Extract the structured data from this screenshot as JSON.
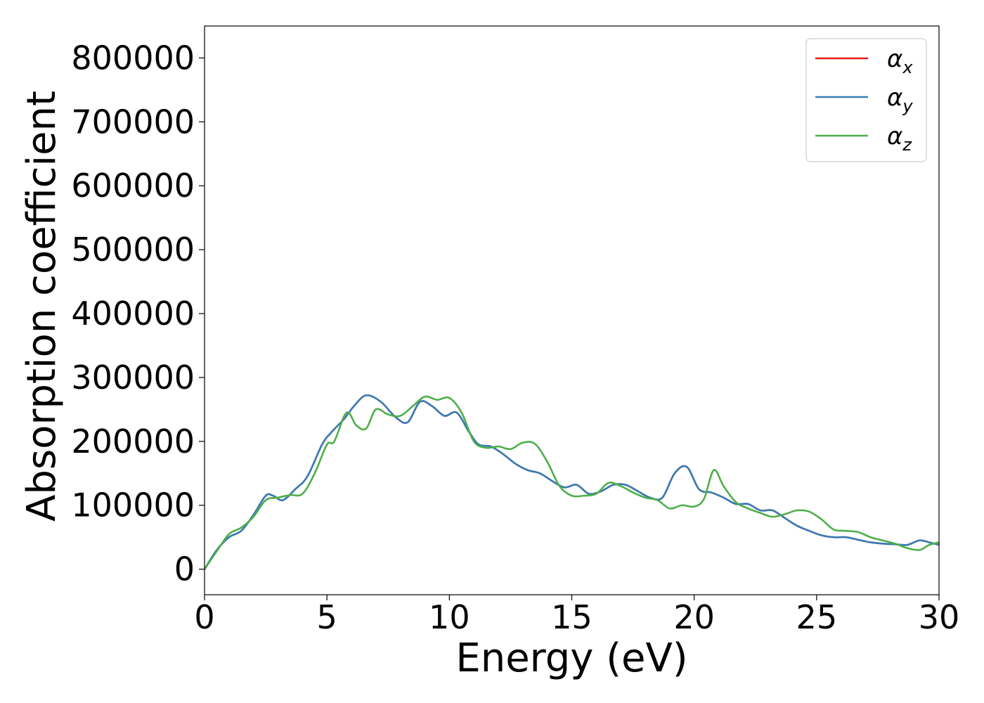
{
  "chart_data": {
    "type": "line",
    "title": "",
    "xlabel": "Energy (eV)",
    "ylabel": "Absorption coefficient",
    "xlim": [
      0,
      30
    ],
    "ylim": [
      -40000,
      850000
    ],
    "xticks": [
      0,
      5,
      10,
      15,
      20,
      25,
      30
    ],
    "yticks": [
      0,
      100000,
      200000,
      300000,
      400000,
      500000,
      600000,
      700000,
      800000
    ],
    "grid": false,
    "legend_position": "top-right",
    "series": [
      {
        "name": "α_x",
        "legend_base": "α",
        "legend_sub": "x",
        "color": "#e41a1c",
        "x": [
          0,
          0.5,
          1,
          1.5,
          2,
          2.5,
          2.8,
          3.2,
          3.7,
          4.2,
          4.8,
          5.2,
          5.7,
          6.1,
          6.6,
          7.2,
          7.8,
          8.3,
          8.8,
          9.3,
          9.8,
          10.3,
          10.8,
          11.2,
          11.7,
          12.2,
          12.7,
          13.2,
          13.7,
          14.2,
          14.7,
          15.2,
          15.7,
          16.2,
          16.7,
          17.2,
          17.7,
          18.2,
          18.7,
          19.2,
          19.7,
          20.2,
          20.7,
          21.2,
          21.7,
          22.2,
          22.7,
          23.2,
          23.7,
          24.2,
          24.7,
          25.2,
          25.7,
          26.2,
          26.7,
          27.2,
          27.7,
          28.2,
          28.7,
          29.2,
          29.6,
          30
        ],
        "y": [
          0,
          30000,
          50000,
          60000,
          85000,
          115000,
          115000,
          108000,
          125000,
          145000,
          195000,
          215000,
          235000,
          255000,
          272000,
          262000,
          238000,
          230000,
          262000,
          255000,
          240000,
          245000,
          215000,
          195000,
          192000,
          180000,
          165000,
          155000,
          150000,
          138000,
          128000,
          132000,
          118000,
          122000,
          132000,
          132000,
          122000,
          112000,
          112000,
          150000,
          160000,
          125000,
          120000,
          112000,
          102000,
          102000,
          92000,
          92000,
          80000,
          68000,
          60000,
          53000,
          50000,
          50000,
          46000,
          42000,
          40000,
          39000,
          38000,
          45000,
          42000,
          38000
        ]
      },
      {
        "name": "α_y",
        "legend_base": "α",
        "legend_sub": "y",
        "color": "#377eb8",
        "x": [
          0,
          0.5,
          1,
          1.5,
          2,
          2.5,
          2.8,
          3.2,
          3.7,
          4.2,
          4.8,
          5.2,
          5.7,
          6.1,
          6.6,
          7.2,
          7.8,
          8.3,
          8.8,
          9.3,
          9.8,
          10.3,
          10.8,
          11.2,
          11.7,
          12.2,
          12.7,
          13.2,
          13.7,
          14.2,
          14.7,
          15.2,
          15.7,
          16.2,
          16.7,
          17.2,
          17.7,
          18.2,
          18.7,
          19.2,
          19.7,
          20.2,
          20.7,
          21.2,
          21.7,
          22.2,
          22.7,
          23.2,
          23.7,
          24.2,
          24.7,
          25.2,
          25.7,
          26.2,
          26.7,
          27.2,
          27.7,
          28.2,
          28.7,
          29.2,
          29.6,
          30
        ],
        "y": [
          0,
          30000,
          50000,
          60000,
          85000,
          115000,
          115000,
          108000,
          125000,
          145000,
          195000,
          215000,
          235000,
          255000,
          272000,
          262000,
          238000,
          230000,
          262000,
          255000,
          240000,
          245000,
          215000,
          195000,
          192000,
          180000,
          165000,
          155000,
          150000,
          138000,
          128000,
          132000,
          118000,
          122000,
          132000,
          132000,
          122000,
          112000,
          112000,
          150000,
          160000,
          125000,
          120000,
          112000,
          102000,
          102000,
          92000,
          92000,
          80000,
          68000,
          60000,
          53000,
          50000,
          50000,
          46000,
          42000,
          40000,
          39000,
          38000,
          45000,
          42000,
          38000
        ]
      },
      {
        "name": "α_z",
        "legend_base": "α",
        "legend_sub": "z",
        "color": "#4daf4a",
        "x": [
          0,
          0.5,
          1,
          1.5,
          2,
          2.5,
          3.0,
          3.5,
          4.0,
          4.5,
          5.0,
          5.3,
          5.8,
          6.2,
          6.6,
          7.0,
          7.5,
          8.0,
          8.5,
          9.0,
          9.5,
          10.0,
          10.5,
          11.0,
          11.5,
          12.0,
          12.5,
          13.0,
          13.5,
          14.0,
          14.5,
          15.0,
          15.5,
          16.0,
          16.5,
          17.0,
          17.5,
          18.0,
          18.5,
          19.0,
          19.5,
          20.0,
          20.4,
          20.8,
          21.2,
          21.7,
          22.2,
          22.7,
          23.2,
          23.7,
          24.2,
          24.7,
          25.2,
          25.7,
          26.2,
          26.7,
          27.2,
          27.7,
          28.2,
          28.7,
          29.2,
          29.6,
          30
        ],
        "y": [
          0,
          28000,
          55000,
          65000,
          82000,
          108000,
          112000,
          116000,
          118000,
          150000,
          195000,
          200000,
          245000,
          225000,
          220000,
          250000,
          242000,
          240000,
          255000,
          270000,
          265000,
          268000,
          245000,
          200000,
          190000,
          192000,
          188000,
          198000,
          196000,
          168000,
          130000,
          115000,
          115000,
          118000,
          135000,
          130000,
          120000,
          112000,
          108000,
          95000,
          100000,
          98000,
          110000,
          155000,
          130000,
          105000,
          95000,
          88000,
          82000,
          86000,
          92000,
          90000,
          78000,
          62000,
          60000,
          58000,
          50000,
          45000,
          40000,
          33000,
          30000,
          38000,
          42000
        ]
      }
    ]
  }
}
